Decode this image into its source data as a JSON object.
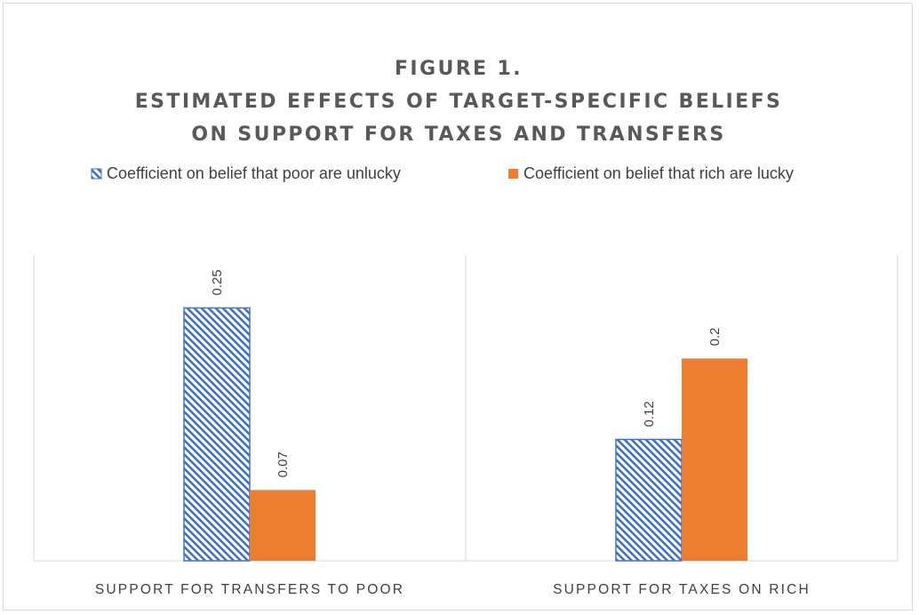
{
  "chart_data": {
    "type": "bar",
    "title": [
      "FIGURE 1.",
      "ESTIMATED EFFECTS OF TARGET-SPECIFIC BELIEFS",
      "ON SUPPORT FOR TAXES AND TRANSFERS"
    ],
    "categories": [
      "SUPPORT FOR TRANSFERS TO POOR",
      "SUPPORT FOR TAXES ON RICH"
    ],
    "series": [
      {
        "name": "Coefficient on belief that poor are unlucky",
        "values": [
          0.25,
          0.12
        ],
        "labels": [
          "0.25",
          "0.12"
        ],
        "pattern": "diagonal-hatch",
        "color": "#4472C4"
      },
      {
        "name": "Coefficient on belief that rich are lucky",
        "values": [
          0.07,
          0.2
        ],
        "labels": [
          "0.07",
          "0.2"
        ],
        "pattern": "solid",
        "color": "#ED7D31"
      }
    ],
    "ylim": [
      0,
      0.3
    ],
    "legend_position": "top",
    "grid": false,
    "category_separators": true
  }
}
